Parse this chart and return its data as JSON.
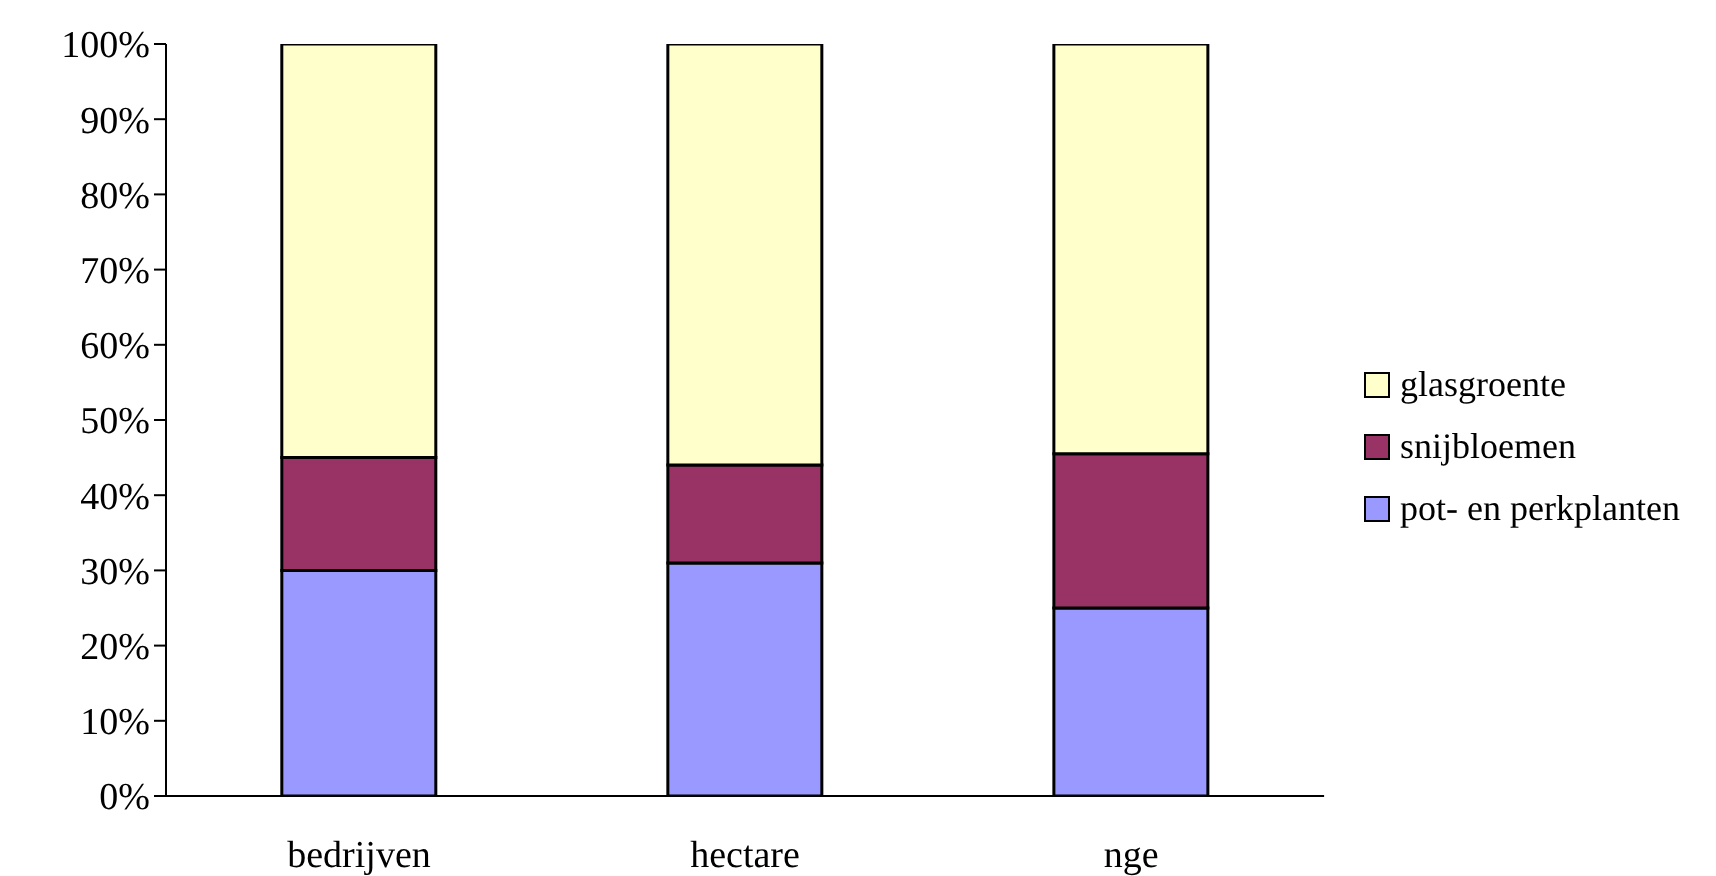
{
  "chart_data": {
    "type": "bar",
    "stacked": true,
    "categories": [
      "bedrijven",
      "hectare",
      "nge"
    ],
    "series": [
      {
        "name": "pot- en perkplanten",
        "color": "#9999ff",
        "values": [
          30,
          31,
          25
        ]
      },
      {
        "name": "snijbloemen",
        "color": "#993366",
        "values": [
          15,
          13,
          20.5
        ]
      },
      {
        "name": "glasgroente",
        "color": "#ffffcc",
        "values": [
          55,
          56,
          54.5
        ]
      }
    ],
    "ylim": [
      0,
      100
    ],
    "yticks": [
      {
        "value": 0,
        "label": "0%"
      },
      {
        "value": 10,
        "label": "10%"
      },
      {
        "value": 20,
        "label": "20%"
      },
      {
        "value": 30,
        "label": "30%"
      },
      {
        "value": 40,
        "label": "40%"
      },
      {
        "value": 50,
        "label": "50%"
      },
      {
        "value": 60,
        "label": "60%"
      },
      {
        "value": 70,
        "label": "70%"
      },
      {
        "value": 80,
        "label": "80%"
      },
      {
        "value": 90,
        "label": "90%"
      },
      {
        "value": 100,
        "label": "100%"
      }
    ],
    "grid": false,
    "legend": "right"
  }
}
